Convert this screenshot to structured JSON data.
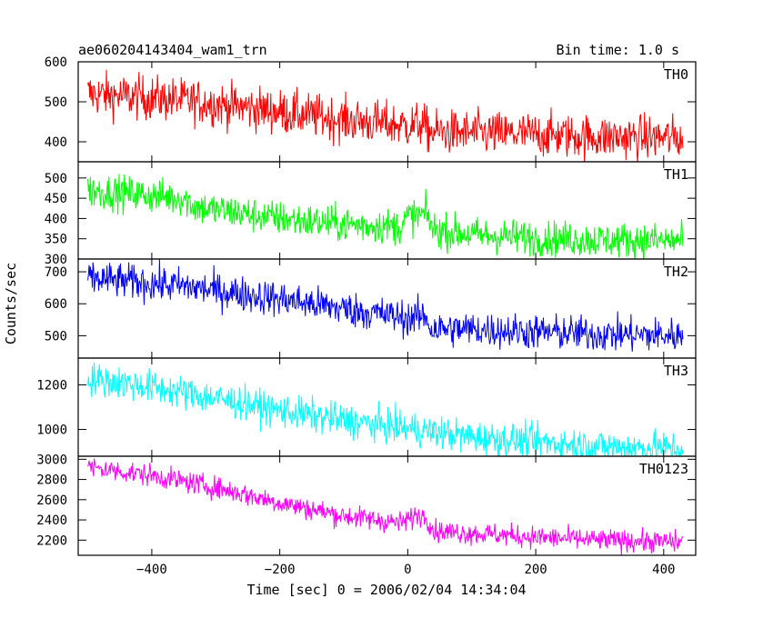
{
  "header": {
    "title": "ae060204143404_wam1_trn",
    "bin_time": "Bin time: 1.0 s"
  },
  "chart_data": {
    "type": "line",
    "xlabel": "Time [sec] 0 = 2006/02/04 14:34:04",
    "ylabel": "Counts/sec",
    "xlim": [
      -515,
      450
    ],
    "x_ticks": [
      -400,
      -200,
      0,
      200,
      400
    ],
    "x_tick_labels": [
      "−400",
      "−200",
      "0",
      "200",
      "400"
    ],
    "x_range": [
      -500,
      430
    ],
    "panels": [
      {
        "name": "TH0",
        "color": "#ff0000",
        "ylim": [
          350,
          600
        ],
        "y_ticks": [
          400,
          500,
          600
        ],
        "y_tick_labels": [
          "400",
          "500",
          "600"
        ],
        "trend": [
          [
            -500,
            520
          ],
          [
            -360,
            505
          ],
          [
            -300,
            495
          ],
          [
            -200,
            475
          ],
          [
            -100,
            455
          ],
          [
            0,
            440
          ],
          [
            20,
            445
          ],
          [
            35,
            425
          ],
          [
            100,
            422
          ],
          [
            200,
            418
          ],
          [
            300,
            412
          ],
          [
            430,
            410
          ]
        ],
        "noise": 28
      },
      {
        "name": "TH1",
        "color": "#00ff00",
        "ylim": [
          300,
          540
        ],
        "y_ticks": [
          300,
          350,
          400,
          450,
          500
        ],
        "y_tick_labels": [
          "300",
          "350",
          "400",
          "450",
          "500"
        ],
        "trend": [
          [
            -500,
            470
          ],
          [
            -350,
            450
          ],
          [
            -330,
            428
          ],
          [
            -200,
            400
          ],
          [
            -100,
            385
          ],
          [
            -10,
            380
          ],
          [
            0,
            405
          ],
          [
            30,
            410
          ],
          [
            40,
            372
          ],
          [
            100,
            360
          ],
          [
            200,
            352
          ],
          [
            300,
            347
          ],
          [
            430,
            345
          ]
        ],
        "noise": 22
      },
      {
        "name": "TH2",
        "color": "#0000ff",
        "ylim": [
          430,
          740
        ],
        "y_ticks": [
          500,
          600,
          700
        ],
        "y_tick_labels": [
          "500",
          "600",
          "700"
        ],
        "trend": [
          [
            -500,
            680
          ],
          [
            -350,
            655
          ],
          [
            -200,
            615
          ],
          [
            -100,
            585
          ],
          [
            0,
            555
          ],
          [
            30,
            560
          ],
          [
            35,
            522
          ],
          [
            100,
            520
          ],
          [
            200,
            512
          ],
          [
            300,
            505
          ],
          [
            430,
            500
          ]
        ],
        "noise": 28
      },
      {
        "name": "TH3",
        "color": "#00ffff",
        "ylim": [
          880,
          1320
        ],
        "y_ticks": [
          1000,
          1200
        ],
        "y_tick_labels": [
          "1000",
          "1200"
        ],
        "trend": [
          [
            -500,
            1230
          ],
          [
            -400,
            1190
          ],
          [
            -300,
            1140
          ],
          [
            -200,
            1085
          ],
          [
            -100,
            1040
          ],
          [
            0,
            1005
          ],
          [
            100,
            965
          ],
          [
            200,
            945
          ],
          [
            300,
            925
          ],
          [
            430,
            915
          ]
        ],
        "noise": 38
      },
      {
        "name": "TH0123",
        "color": "#ff00ff",
        "ylim": [
          2050,
          3030
        ],
        "y_ticks": [
          2200,
          2400,
          2600,
          2800,
          3000
        ],
        "y_tick_labels": [
          "2200",
          "2400",
          "2600",
          "2800",
          "3000"
        ],
        "trend": [
          [
            -500,
            2920
          ],
          [
            -400,
            2840
          ],
          [
            -300,
            2720
          ],
          [
            -200,
            2570
          ],
          [
            -100,
            2440
          ],
          [
            -10,
            2370
          ],
          [
            15,
            2450
          ],
          [
            30,
            2430
          ],
          [
            40,
            2290
          ],
          [
            100,
            2270
          ],
          [
            200,
            2230
          ],
          [
            300,
            2200
          ],
          [
            430,
            2180
          ]
        ],
        "noise": 55
      }
    ]
  }
}
